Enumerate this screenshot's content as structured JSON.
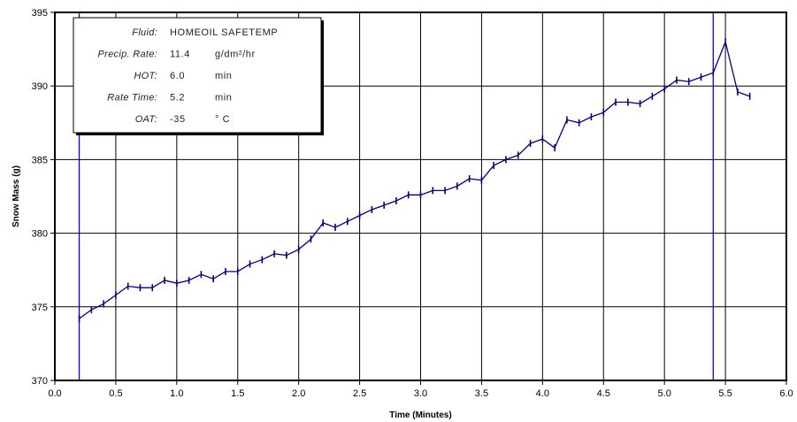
{
  "chart_data": {
    "type": "line",
    "xlabel": "Time (Minutes)",
    "ylabel": "Snow Mass (g)",
    "xlim": [
      0.0,
      6.0
    ],
    "ylim": [
      370,
      395
    ],
    "x_ticks": [
      "0.0",
      "0.5",
      "1.0",
      "1.5",
      "2.0",
      "2.5",
      "3.0",
      "3.5",
      "4.0",
      "4.5",
      "5.0",
      "5.5",
      "6.0"
    ],
    "y_ticks": [
      "370",
      "375",
      "380",
      "385",
      "390",
      "395"
    ],
    "grid": true,
    "series": [
      {
        "color": "#000080",
        "marker": "vertical-tick",
        "x": [
          0.2,
          0.3,
          0.4,
          0.5,
          0.6,
          0.7,
          0.8,
          0.9,
          1.0,
          1.1,
          1.2,
          1.3,
          1.4,
          1.5,
          1.6,
          1.7,
          1.8,
          1.9,
          2.0,
          2.1,
          2.2,
          2.3,
          2.4,
          2.5,
          2.6,
          2.7,
          2.8,
          2.9,
          3.0,
          3.1,
          3.2,
          3.3,
          3.4,
          3.5,
          3.6,
          3.7,
          3.8,
          3.9,
          4.0,
          4.1,
          4.2,
          4.3,
          4.4,
          4.5,
          4.6,
          4.7,
          4.8,
          4.9,
          5.0,
          5.1,
          5.2,
          5.3,
          5.4,
          5.5,
          5.6,
          5.7
        ],
        "y": [
          374.2,
          374.8,
          375.2,
          375.8,
          376.4,
          376.3,
          376.3,
          376.8,
          376.6,
          376.8,
          377.2,
          376.9,
          377.4,
          377.4,
          377.9,
          378.2,
          378.6,
          378.5,
          378.9,
          379.6,
          380.7,
          380.4,
          380.8,
          381.2,
          381.6,
          381.9,
          382.2,
          382.6,
          382.6,
          382.9,
          382.9,
          383.2,
          383.7,
          383.6,
          384.6,
          385.0,
          385.3,
          386.1,
          386.4,
          385.8,
          387.7,
          387.5,
          387.9,
          388.2,
          388.9,
          388.9,
          388.8,
          389.3,
          389.8,
          390.4,
          390.3,
          390.6,
          390.9,
          393.0,
          389.6,
          389.3
        ]
      }
    ],
    "vertical_lines": [
      {
        "x": 0.2,
        "color": "#0000ff"
      },
      {
        "x": 5.4,
        "color": "#0000ff"
      }
    ]
  },
  "info_box": {
    "rows": [
      {
        "label": "Fluid:",
        "value": "HOMEOIL SAFETEMP",
        "unit": ""
      },
      {
        "label": "Precip. Rate:",
        "value": "11.4",
        "unit": "g/dm²/hr"
      },
      {
        "label": "HOT:",
        "value": "6.0",
        "unit": "min"
      },
      {
        "label": "Rate Time:",
        "value": "5.2",
        "unit": "min"
      },
      {
        "label": "OAT:",
        "value": "-35",
        "unit": "° C"
      }
    ]
  }
}
